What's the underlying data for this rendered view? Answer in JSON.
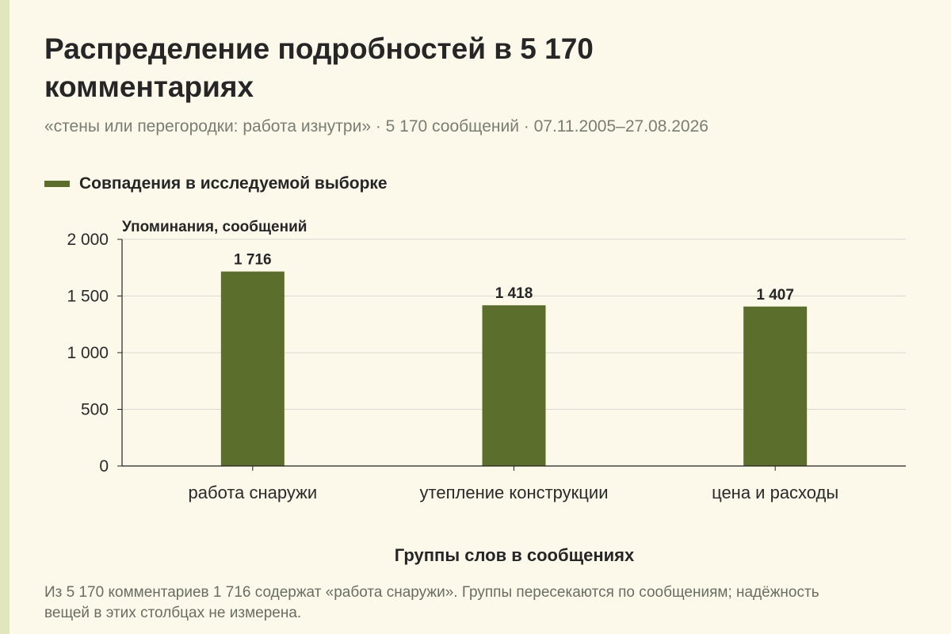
{
  "title": "Распределение подробностей в 5 170 комментариях",
  "subtitle": "«стены или перегородки: работа изнутри» · 5 170 сообщений · 07.11.2005–27.08.2026",
  "note": "Из 5 170 комментариев 1 716 содержат «работа снаружи». Группы пересекаются по сообщениям; надёжность вещей в этих столбцах не измерена.",
  "colors": {
    "bar": "#5c6e2b",
    "background": "#fcf9ea",
    "side_stripe": "#e2e6bd",
    "grid": "#d9d9d0",
    "axis": "#222222"
  },
  "chart_data": {
    "type": "bar",
    "categories": [
      "работа снаружи",
      "утепление конструкции",
      "цена и расходы"
    ],
    "series": [
      {
        "name": "Совпадения в исследуемой выборке",
        "values": [
          1716,
          1418,
          1407
        ]
      }
    ],
    "value_labels": [
      "1 716",
      "1 418",
      "1 407"
    ],
    "xlabel": "Группы слов в сообщениях",
    "ylabel": "Упоминания, сообщений",
    "ylim": [
      0,
      2000
    ],
    "yticks": [
      0,
      500,
      1000,
      1500,
      2000
    ],
    "ytick_labels": [
      "0",
      "500",
      "1 000",
      "1 500",
      "2 000"
    ],
    "grid": true,
    "legend_position": "top-left"
  }
}
